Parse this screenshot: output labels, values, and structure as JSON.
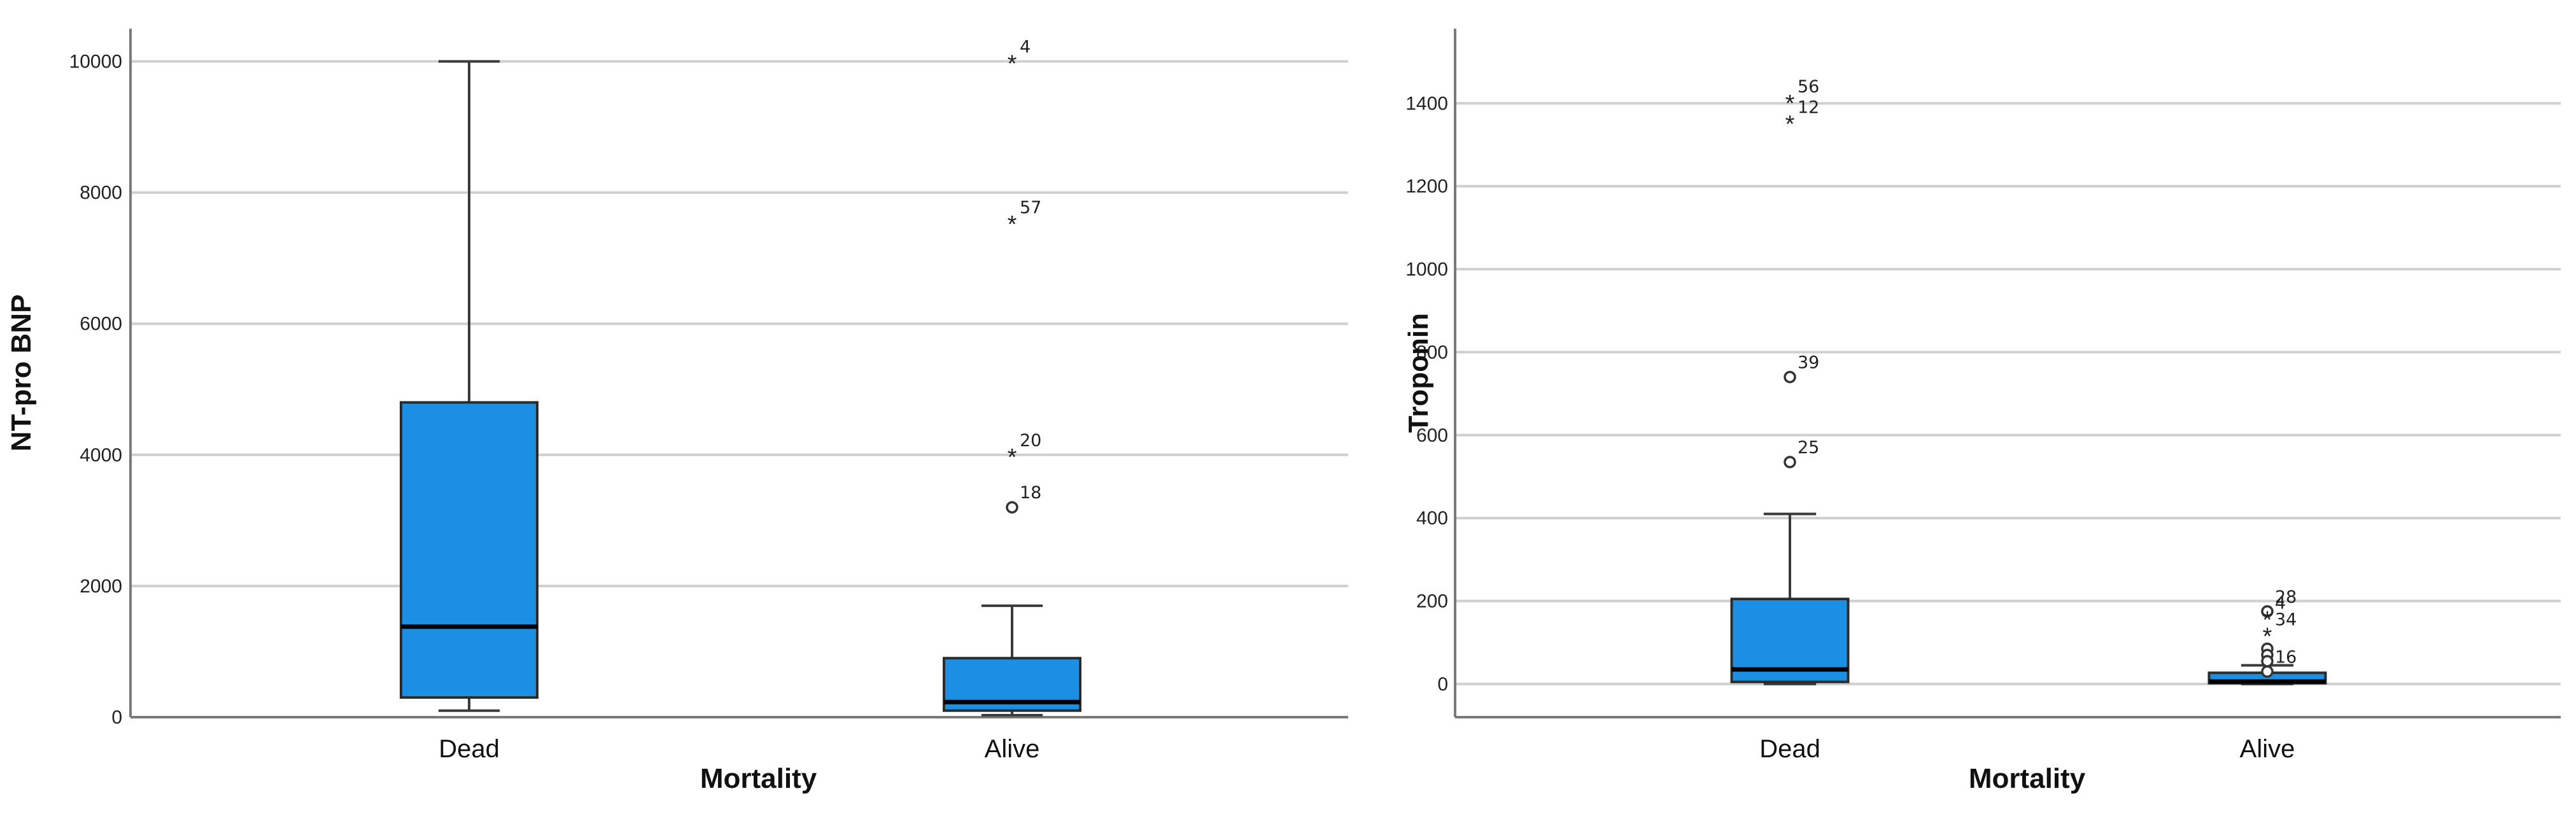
{
  "colors": {
    "box": "#1a8fe3",
    "box_stroke": "#2b2b2b",
    "median": "#000000",
    "grid": "#cfcfcf"
  },
  "chart_data": [
    {
      "type": "box",
      "xlabel": "Mortality",
      "ylabel": "NT-pro BNP",
      "ylim": [
        0,
        10500
      ],
      "yticks": [
        0,
        2000,
        4000,
        6000,
        8000,
        10000
      ],
      "grid": true,
      "categories": [
        "Dead",
        "Alive"
      ],
      "boxes": [
        {
          "category": "Dead",
          "min": 100,
          "q1": 300,
          "median": 1380,
          "q3": 4800,
          "max": 10000,
          "outliers": []
        },
        {
          "category": "Alive",
          "min": 30,
          "q1": 100,
          "median": 230,
          "q3": 900,
          "max": 1700,
          "outliers": [
            {
              "label": "4",
              "value": 10000,
              "marker": "star"
            },
            {
              "label": "57",
              "value": 7550,
              "marker": "star"
            },
            {
              "label": "20",
              "value": 4000,
              "marker": "star"
            },
            {
              "label": "18",
              "value": 3200,
              "marker": "circle"
            }
          ]
        }
      ]
    },
    {
      "type": "box",
      "xlabel": "Mortality",
      "ylabel": "Troponin",
      "ylim": [
        -80,
        1580
      ],
      "yticks": [
        0,
        200,
        400,
        600,
        800,
        1000,
        1200,
        1400
      ],
      "grid": true,
      "categories": [
        "Dead",
        "Alive"
      ],
      "boxes": [
        {
          "category": "Dead",
          "min": 0,
          "q1": 5,
          "median": 35,
          "q3": 205,
          "max": 410,
          "outliers": [
            {
              "label": "56",
              "value": 1405,
              "marker": "star"
            },
            {
              "label": "12",
              "value": 1355,
              "marker": "star"
            },
            {
              "label": "39",
              "value": 740,
              "marker": "circle"
            },
            {
              "label": "25",
              "value": 535,
              "marker": "circle"
            }
          ]
        },
        {
          "category": "Alive",
          "min": 0,
          "q1": 2,
          "median": 6,
          "q3": 27,
          "max": 45,
          "outliers": [
            {
              "label": "28",
              "value": 175,
              "marker": "circle"
            },
            {
              "label": "4",
              "value": 160,
              "marker": "star"
            },
            {
              "label": "34",
              "value": 120,
              "marker": "star"
            },
            {
              "label": "",
              "value": 85,
              "marker": "circle"
            },
            {
              "label": "",
              "value": 70,
              "marker": "circle"
            },
            {
              "label": "",
              "value": 55,
              "marker": "circle"
            },
            {
              "label": "16",
              "value": 30,
              "marker": "circle"
            }
          ]
        }
      ]
    }
  ]
}
